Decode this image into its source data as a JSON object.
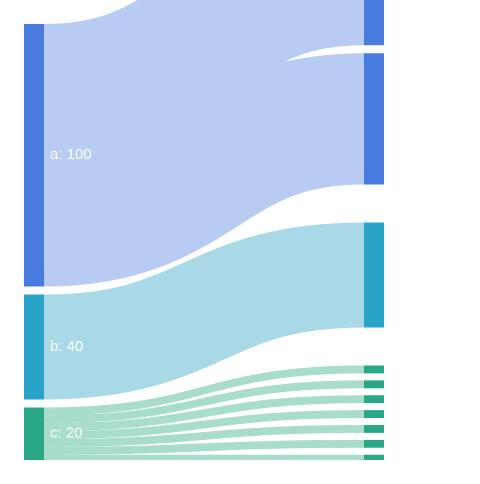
{
  "chart_data": {
    "type": "sankey",
    "nodes": [
      {
        "id": "a",
        "label": "a: 100",
        "value": 100,
        "column": 0,
        "color": "#4a7bdf"
      },
      {
        "id": "b",
        "label": "b: 40",
        "value": 40,
        "column": 0,
        "color": "#2aa3c8"
      },
      {
        "id": "c",
        "label": "c: 20",
        "value": 20,
        "column": 0,
        "color": "#2aa886"
      },
      {
        "id": "a1",
        "label": "",
        "value": 50,
        "column": 1,
        "color": "#4a7bdf"
      },
      {
        "id": "a2",
        "label": "",
        "value": 50,
        "column": 1,
        "color": "#4a7bdf"
      },
      {
        "id": "b1",
        "label": "",
        "value": 40,
        "column": 1,
        "color": "#2aa3c8"
      },
      {
        "id": "c1",
        "label": "",
        "value": 3,
        "column": 1,
        "color": "#2aa886"
      },
      {
        "id": "c2",
        "label": "",
        "value": 3,
        "column": 1,
        "color": "#2aa886"
      },
      {
        "id": "c3",
        "label": "",
        "value": 3,
        "column": 1,
        "color": "#2aa886"
      },
      {
        "id": "c4",
        "label": "",
        "value": 3,
        "column": 1,
        "color": "#2aa886"
      },
      {
        "id": "c5",
        "label": "",
        "value": 3,
        "column": 1,
        "color": "#2aa886"
      },
      {
        "id": "c6",
        "label": "",
        "value": 3,
        "column": 1,
        "color": "#2aa886"
      },
      {
        "id": "c7",
        "label": "",
        "value": 2,
        "column": 1,
        "color": "#2aa886"
      }
    ],
    "links": [
      {
        "source": "a",
        "target": "a1",
        "value": 50,
        "color": "#b8cbf2"
      },
      {
        "source": "a",
        "target": "a2",
        "value": 50,
        "color": "#b8cbf2"
      },
      {
        "source": "b",
        "target": "b1",
        "value": 40,
        "color": "#a9d9e7"
      },
      {
        "source": "c",
        "target": "c1",
        "value": 3,
        "color": "#a8dccb"
      },
      {
        "source": "c",
        "target": "c2",
        "value": 3,
        "color": "#a8dccb"
      },
      {
        "source": "c",
        "target": "c3",
        "value": 3,
        "color": "#a8dccb"
      },
      {
        "source": "c",
        "target": "c4",
        "value": 3,
        "color": "#a8dccb"
      },
      {
        "source": "c",
        "target": "c5",
        "value": 3,
        "color": "#a8dccb"
      },
      {
        "source": "c",
        "target": "c6",
        "value": 3,
        "color": "#a8dccb"
      },
      {
        "source": "c",
        "target": "c7",
        "value": 2,
        "color": "#a8dccb"
      }
    ]
  }
}
